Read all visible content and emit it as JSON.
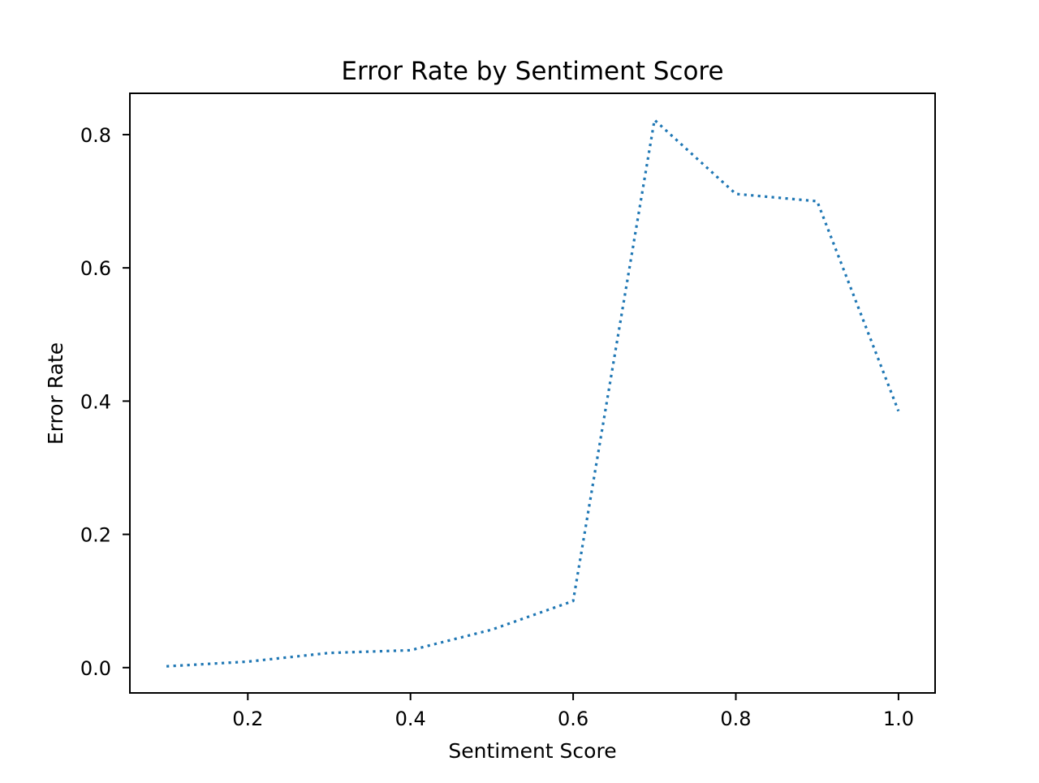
{
  "chart_data": {
    "type": "line",
    "title": "Error Rate by Sentiment Score",
    "xlabel": "Sentiment Score",
    "ylabel": "Error Rate",
    "xlim": [
      0.055,
      1.045
    ],
    "ylim": [
      -0.038,
      0.862
    ],
    "xticks": [
      0.2,
      0.4,
      0.6,
      0.8,
      1.0
    ],
    "xtick_labels": [
      "0.2",
      "0.4",
      "0.6",
      "0.8",
      "1.0"
    ],
    "yticks": [
      0.0,
      0.2,
      0.4,
      0.6,
      0.8
    ],
    "ytick_labels": [
      "0.0",
      "0.2",
      "0.4",
      "0.6",
      "0.8"
    ],
    "grid": false,
    "series": [
      {
        "line_style": "dotted",
        "color": "#1f77b4",
        "x": [
          0.1,
          0.2,
          0.3,
          0.4,
          0.5,
          0.6,
          0.7,
          0.8,
          0.9,
          1.0
        ],
        "y": [
          0.002,
          0.009,
          0.022,
          0.026,
          0.057,
          0.1,
          0.822,
          0.711,
          0.7,
          0.385
        ]
      }
    ]
  }
}
